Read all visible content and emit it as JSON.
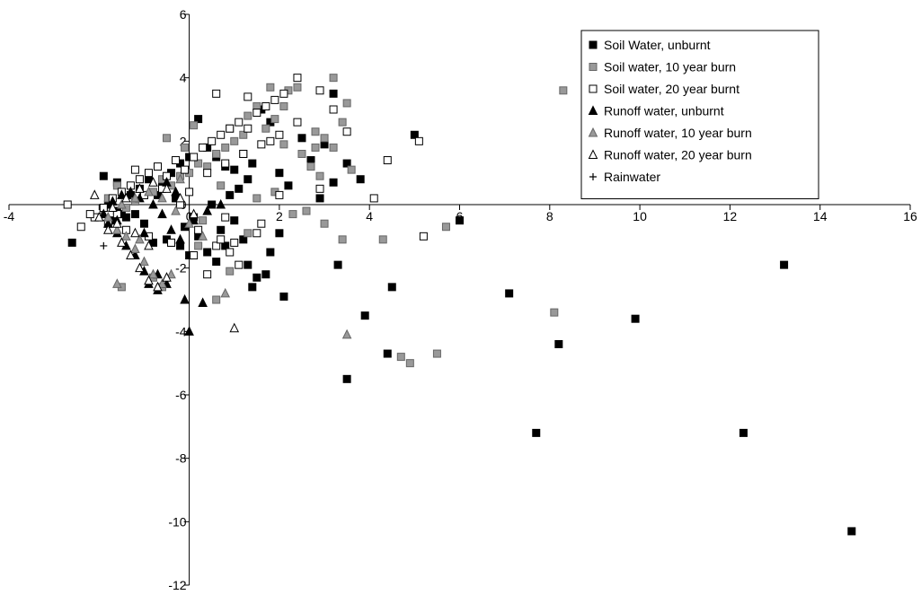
{
  "chart_data": {
    "type": "scatter",
    "title": "",
    "xlabel": "",
    "ylabel": "",
    "xlim": [
      -4,
      16
    ],
    "ylim": [
      -12,
      6
    ],
    "x_ticks": [
      -4,
      -2,
      0,
      2,
      4,
      6,
      8,
      10,
      12,
      14,
      16
    ],
    "y_ticks": [
      -12,
      -10,
      -8,
      -6,
      -4,
      -2,
      0,
      2,
      4,
      6
    ],
    "x_tick_labels": [
      "-4",
      "-2",
      "0",
      "2",
      "4",
      "6",
      "8",
      "10",
      "12",
      "14",
      "16"
    ],
    "y_tick_labels": [
      "-12",
      "-10",
      "-8",
      "-6",
      "-4",
      "-2",
      "0",
      "2",
      "4",
      "6"
    ],
    "axes_cross_at": [
      0,
      0
    ],
    "grid": false,
    "legend_position": "top-right",
    "series": [
      {
        "name": "Soil Water, unburnt",
        "marker": "square",
        "fill": "#000000",
        "stroke": "#000000",
        "points": [
          [
            14.7,
            -10.3
          ],
          [
            13.2,
            -1.9
          ],
          [
            12.3,
            -7.2
          ],
          [
            9.9,
            -3.6
          ],
          [
            8.2,
            -4.4
          ],
          [
            7.7,
            -7.2
          ],
          [
            7.1,
            -2.8
          ],
          [
            6.0,
            -0.5
          ],
          [
            5.0,
            2.2
          ],
          [
            4.5,
            -2.6
          ],
          [
            4.4,
            -4.7
          ],
          [
            3.9,
            -3.5
          ],
          [
            3.5,
            -5.5
          ],
          [
            3.3,
            -1.9
          ],
          [
            3.0,
            1.9
          ],
          [
            3.2,
            3.5
          ],
          [
            3.8,
            0.8
          ],
          [
            3.5,
            1.3
          ],
          [
            2.9,
            0.2
          ],
          [
            3.2,
            0.7
          ],
          [
            2.1,
            -2.9
          ],
          [
            2.0,
            -0.9
          ],
          [
            1.8,
            -1.5
          ],
          [
            1.7,
            -2.2
          ],
          [
            1.5,
            -2.3
          ],
          [
            1.4,
            -2.6
          ],
          [
            1.3,
            -1.9
          ],
          [
            1.2,
            -1.1
          ],
          [
            1.0,
            -0.5
          ],
          [
            0.8,
            -1.3
          ],
          [
            0.6,
            -1.8
          ],
          [
            0.4,
            -1.5
          ],
          [
            0.2,
            -1.0
          ],
          [
            0.0,
            -1.6
          ],
          [
            -0.2,
            -1.3
          ],
          [
            -0.5,
            -1.1
          ],
          [
            -0.8,
            -1.2
          ],
          [
            -1.0,
            -0.6
          ],
          [
            -1.2,
            -0.3
          ],
          [
            -1.4,
            -0.4
          ],
          [
            -1.6,
            -0.2
          ],
          [
            -1.8,
            0.0
          ],
          [
            -1.9,
            -0.1
          ],
          [
            -1.7,
            -0.5
          ],
          [
            -1.5,
            -0.3
          ],
          [
            -1.3,
            0.3
          ],
          [
            -1.1,
            0.5
          ],
          [
            -0.9,
            0.8
          ],
          [
            -0.6,
            0.6
          ],
          [
            -0.4,
            1.0
          ],
          [
            -0.2,
            1.3
          ],
          [
            0.0,
            1.5
          ],
          [
            0.2,
            2.7
          ],
          [
            0.4,
            1.8
          ],
          [
            0.6,
            1.5
          ],
          [
            0.8,
            1.2
          ],
          [
            1.0,
            1.1
          ],
          [
            1.2,
            1.6
          ],
          [
            1.4,
            1.3
          ],
          [
            1.6,
            3.0
          ],
          [
            1.8,
            2.6
          ],
          [
            2.0,
            1.0
          ],
          [
            2.2,
            0.6
          ],
          [
            2.5,
            2.1
          ],
          [
            2.7,
            1.4
          ],
          [
            -2.6,
            -1.2
          ],
          [
            -1.9,
            0.9
          ],
          [
            -1.6,
            0.7
          ],
          [
            -0.7,
            0.3
          ],
          [
            -0.3,
            0.2
          ],
          [
            0.1,
            -0.4
          ],
          [
            0.5,
            0.0
          ],
          [
            0.9,
            0.3
          ],
          [
            1.1,
            0.5
          ],
          [
            1.3,
            0.8
          ],
          [
            0.7,
            -0.8
          ],
          [
            -0.1,
            -0.7
          ]
        ]
      },
      {
        "name": "Soil water, 10 year burn",
        "marker": "square",
        "fill": "#999999",
        "stroke": "#666666",
        "points": [
          [
            8.3,
            3.6
          ],
          [
            8.1,
            -3.4
          ],
          [
            5.7,
            -0.7
          ],
          [
            5.5,
            -4.7
          ],
          [
            4.9,
            -5.0
          ],
          [
            4.7,
            -4.8
          ],
          [
            4.3,
            -1.1
          ],
          [
            3.4,
            -1.1
          ],
          [
            3.0,
            -0.6
          ],
          [
            2.6,
            -0.2
          ],
          [
            2.3,
            -0.3
          ],
          [
            3.2,
            4.0
          ],
          [
            3.5,
            3.2
          ],
          [
            3.4,
            2.6
          ],
          [
            3.2,
            1.8
          ],
          [
            3.0,
            2.1
          ],
          [
            2.8,
            2.3
          ],
          [
            2.8,
            1.8
          ],
          [
            2.7,
            1.2
          ],
          [
            2.5,
            1.6
          ],
          [
            2.4,
            3.7
          ],
          [
            2.2,
            3.6
          ],
          [
            2.1,
            3.1
          ],
          [
            1.9,
            2.7
          ],
          [
            1.8,
            3.7
          ],
          [
            1.7,
            2.4
          ],
          [
            1.5,
            3.1
          ],
          [
            1.3,
            2.8
          ],
          [
            1.2,
            2.2
          ],
          [
            1.0,
            2.0
          ],
          [
            0.8,
            1.8
          ],
          [
            0.6,
            1.6
          ],
          [
            0.4,
            1.2
          ],
          [
            0.2,
            1.3
          ],
          [
            0.0,
            1.0
          ],
          [
            -0.2,
            0.9
          ],
          [
            -0.4,
            0.6
          ],
          [
            -0.6,
            0.8
          ],
          [
            -0.8,
            0.4
          ],
          [
            -1.0,
            0.3
          ],
          [
            -1.2,
            0.1
          ],
          [
            -1.4,
            -0.1
          ],
          [
            -1.6,
            0.6
          ],
          [
            -1.8,
            0.2
          ],
          [
            -0.5,
            2.1
          ],
          [
            -1.5,
            -2.6
          ],
          [
            0.6,
            -3.0
          ],
          [
            1.3,
            -0.9
          ],
          [
            0.9,
            -2.1
          ],
          [
            0.2,
            -1.3
          ],
          [
            -0.4,
            -1.2
          ],
          [
            -0.8,
            -2.3
          ],
          [
            -0.6,
            -2.6
          ],
          [
            0.3,
            -0.5
          ],
          [
            0.7,
            0.6
          ],
          [
            1.5,
            0.2
          ],
          [
            1.9,
            0.4
          ],
          [
            2.1,
            1.9
          ],
          [
            2.9,
            0.9
          ],
          [
            3.6,
            1.1
          ],
          [
            0.1,
            2.5
          ],
          [
            0.9,
            2.4
          ],
          [
            -0.1,
            1.8
          ]
        ]
      },
      {
        "name": "Soil water, 20 year burnt",
        "marker": "square",
        "fill": "#ffffff",
        "stroke": "#000000",
        "points": [
          [
            -2.7,
            0.0
          ],
          [
            -2.4,
            -0.7
          ],
          [
            -2.1,
            -0.4
          ],
          [
            -1.9,
            -0.1
          ],
          [
            -1.7,
            0.2
          ],
          [
            -1.5,
            0.4
          ],
          [
            -1.3,
            0.6
          ],
          [
            -1.1,
            0.8
          ],
          [
            -0.9,
            1.0
          ],
          [
            -0.7,
            1.2
          ],
          [
            -0.5,
            0.9
          ],
          [
            -0.3,
            1.4
          ],
          [
            -0.1,
            1.1
          ],
          [
            0.1,
            1.5
          ],
          [
            0.3,
            1.8
          ],
          [
            0.5,
            2.0
          ],
          [
            0.7,
            2.2
          ],
          [
            0.9,
            2.4
          ],
          [
            1.1,
            2.6
          ],
          [
            1.3,
            2.4
          ],
          [
            1.5,
            2.9
          ],
          [
            1.7,
            3.1
          ],
          [
            1.9,
            3.3
          ],
          [
            2.1,
            3.5
          ],
          [
            2.4,
            4.0
          ],
          [
            2.9,
            3.6
          ],
          [
            3.2,
            3.0
          ],
          [
            3.5,
            2.3
          ],
          [
            4.4,
            1.4
          ],
          [
            5.1,
            2.0
          ],
          [
            5.2,
            -1.0
          ],
          [
            4.1,
            0.2
          ],
          [
            2.9,
            0.5
          ],
          [
            2.0,
            0.3
          ],
          [
            1.5,
            -0.9
          ],
          [
            1.0,
            -1.2
          ],
          [
            0.6,
            -1.3
          ],
          [
            0.1,
            -1.6
          ],
          [
            -0.4,
            -1.2
          ],
          [
            -0.9,
            -1.0
          ],
          [
            -1.4,
            -0.8
          ],
          [
            -1.8,
            -0.6
          ],
          [
            -2.2,
            -0.3
          ],
          [
            1.6,
            -0.6
          ],
          [
            0.8,
            -0.4
          ],
          [
            0.4,
            -2.2
          ],
          [
            -0.6,
            0.5
          ],
          [
            -1.0,
            0.3
          ],
          [
            0.0,
            0.4
          ],
          [
            0.4,
            1.0
          ],
          [
            0.8,
            1.3
          ],
          [
            1.2,
            1.6
          ],
          [
            1.6,
            1.9
          ],
          [
            2.0,
            2.2
          ],
          [
            2.4,
            2.6
          ],
          [
            0.6,
            3.5
          ],
          [
            1.3,
            3.4
          ],
          [
            1.8,
            2.0
          ],
          [
            -1.2,
            1.1
          ],
          [
            -0.2,
            0.0
          ],
          [
            0.2,
            -0.8
          ],
          [
            0.7,
            -1.1
          ],
          [
            -1.6,
            -0.3
          ],
          [
            1.1,
            -1.9
          ],
          [
            0.9,
            -1.5
          ]
        ]
      },
      {
        "name": "Runoff water, unburnt",
        "marker": "triangle",
        "fill": "#000000",
        "stroke": "#000000",
        "points": [
          [
            0.0,
            -4.0
          ],
          [
            0.3,
            -3.1
          ],
          [
            -0.1,
            -3.0
          ],
          [
            -0.5,
            -2.5
          ],
          [
            -0.7,
            -2.7
          ],
          [
            -0.9,
            -2.5
          ],
          [
            -1.0,
            -2.1
          ],
          [
            -1.2,
            -1.6
          ],
          [
            -1.4,
            -1.3
          ],
          [
            -1.6,
            -0.9
          ],
          [
            -1.8,
            -0.6
          ],
          [
            -1.9,
            -0.3
          ],
          [
            -1.7,
            0.1
          ],
          [
            -1.5,
            0.3
          ],
          [
            -1.3,
            0.4
          ],
          [
            -1.1,
            0.2
          ],
          [
            -0.8,
            0.0
          ],
          [
            -0.6,
            -0.3
          ],
          [
            -0.4,
            -0.8
          ],
          [
            -0.2,
            -1.1
          ],
          [
            0.1,
            -0.5
          ],
          [
            0.4,
            -0.2
          ],
          [
            0.7,
            0.0
          ],
          [
            -0.3,
            0.4
          ],
          [
            -0.5,
            0.7
          ],
          [
            -1.6,
            -0.5
          ],
          [
            -1.0,
            -0.9
          ],
          [
            -0.7,
            -2.2
          ]
        ]
      },
      {
        "name": "Runoff water, 10 year burn",
        "marker": "triangle",
        "fill": "#999999",
        "stroke": "#666666",
        "points": [
          [
            3.5,
            -4.1
          ],
          [
            0.8,
            -2.8
          ],
          [
            -1.6,
            -2.5
          ],
          [
            -0.6,
            -2.5
          ],
          [
            -0.8,
            -2.2
          ],
          [
            -1.0,
            -1.8
          ],
          [
            -1.2,
            -1.4
          ],
          [
            -1.4,
            -1.0
          ],
          [
            -1.6,
            -0.8
          ],
          [
            -1.8,
            -0.4
          ],
          [
            -1.5,
            0.0
          ],
          [
            -1.2,
            0.2
          ],
          [
            -0.9,
            0.4
          ],
          [
            -0.6,
            0.2
          ],
          [
            -0.3,
            -0.2
          ],
          [
            0.0,
            -0.6
          ],
          [
            0.3,
            -1.0
          ],
          [
            -0.4,
            -2.2
          ],
          [
            -1.1,
            -1.1
          ],
          [
            -0.2,
            0.8
          ]
        ]
      },
      {
        "name": "Runoff water, 20 year burn",
        "marker": "triangle",
        "fill": "#ffffff",
        "stroke": "#000000",
        "points": [
          [
            1.0,
            -3.9
          ],
          [
            -2.1,
            0.3
          ],
          [
            -2.0,
            -0.4
          ],
          [
            -1.8,
            -0.8
          ],
          [
            -1.5,
            -1.2
          ],
          [
            -1.3,
            -1.6
          ],
          [
            -1.1,
            -2.0
          ],
          [
            -0.9,
            -2.4
          ],
          [
            -0.7,
            -2.6
          ],
          [
            -0.5,
            -2.3
          ],
          [
            -1.7,
            -0.1
          ],
          [
            -1.4,
            0.2
          ],
          [
            -1.1,
            0.5
          ],
          [
            -0.8,
            0.7
          ],
          [
            -0.5,
            0.5
          ],
          [
            -0.2,
            0.2
          ],
          [
            0.1,
            -0.3
          ],
          [
            -1.6,
            -0.6
          ],
          [
            -1.2,
            -0.9
          ],
          [
            -0.9,
            -1.3
          ]
        ]
      },
      {
        "name": "Rainwater",
        "marker": "plus",
        "fill": "none",
        "stroke": "#000000",
        "points": [
          [
            -1.9,
            -1.3
          ]
        ]
      }
    ]
  }
}
